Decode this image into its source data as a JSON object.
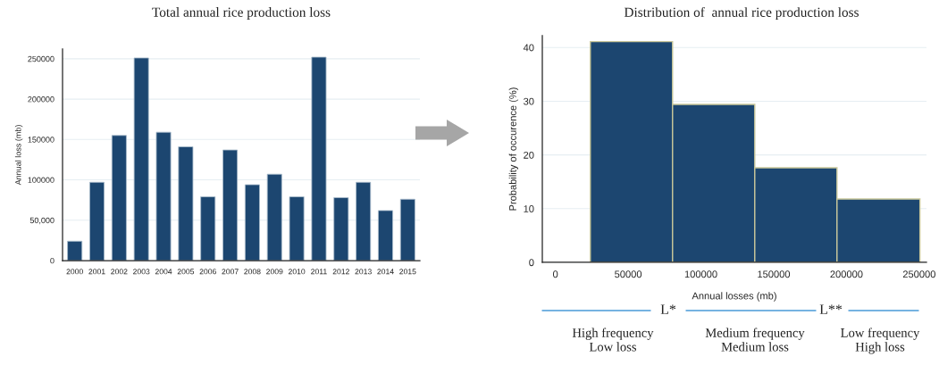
{
  "chart_data": [
    {
      "type": "bar",
      "title": "Total annual rice production loss",
      "ylabel": "Annual loss (mb)",
      "categories": [
        "2000",
        "2001",
        "2002",
        "2003",
        "2004",
        "2005",
        "2006",
        "2007",
        "2008",
        "2009",
        "2010",
        "2011",
        "2012",
        "2013",
        "2014",
        "2015"
      ],
      "values": [
        24000,
        97000,
        155000,
        251000,
        159000,
        141000,
        79000,
        137000,
        94000,
        107000,
        79000,
        252000,
        78000,
        97000,
        62000,
        76000
      ],
      "color": "#1c4670",
      "ylim": [
        0,
        262000
      ],
      "yticks": [
        0,
        {
          "value": 50000,
          "label": "50,000"
        },
        100000,
        150000,
        200000,
        250000
      ],
      "grid": "y",
      "legend": false
    },
    {
      "type": "histogram",
      "title": "Distribution of  annual rice production loss",
      "xlabel": "Annual losses (mb)",
      "ylabel": "Probability of occurence (%)",
      "bins": [
        24000,
        80500,
        137000,
        193500,
        250500
      ],
      "values": [
        41.1,
        29.4,
        17.6,
        11.8
      ],
      "color": "#1c4670",
      "xlim": [
        -9000,
        255000
      ],
      "ylim": [
        0,
        42.2
      ],
      "xticks": [
        0,
        50000,
        100000,
        150000,
        200000,
        250000
      ],
      "yticks": [
        0,
        10,
        20,
        30,
        40
      ],
      "grid": "y",
      "legend": false,
      "annotations": [
        "L*",
        "L**",
        "High frequency\nLow loss",
        "Medium frequency\nMedium loss",
        "Low frequency\nHigh loss"
      ]
    }
  ]
}
